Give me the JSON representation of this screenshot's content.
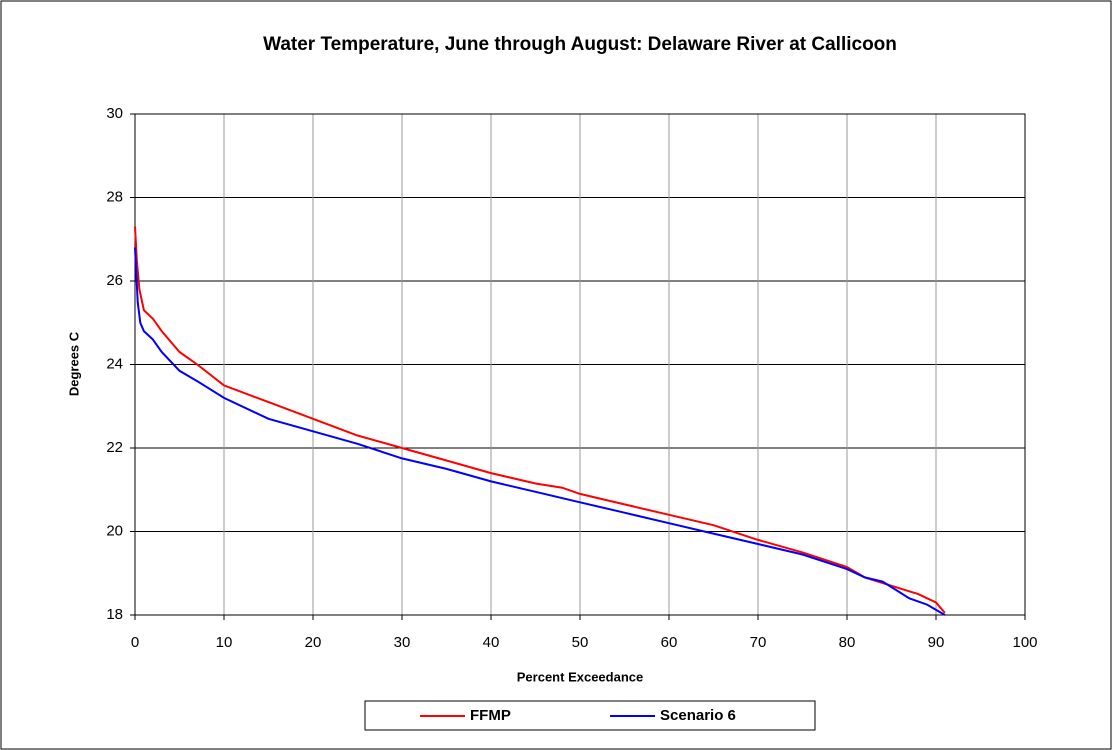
{
  "chart_data": {
    "type": "line",
    "title": "Water Temperature, June through August: Delaware River at Callicoon",
    "xlabel": "Percent Exceedance",
    "ylabel": "Degrees C",
    "xlim": [
      0,
      100
    ],
    "xticks": [
      0,
      10,
      20,
      30,
      40,
      50,
      60,
      70,
      80,
      90,
      100
    ],
    "ylim": [
      18,
      30
    ],
    "yticks": [
      18,
      20,
      22,
      24,
      26,
      28,
      30
    ],
    "grid": true,
    "legend": "bottom",
    "series": [
      {
        "name": "FFMP",
        "color": "#ff0000",
        "x": [
          0,
          0.2,
          0.5,
          1,
          2,
          3,
          5,
          7,
          10,
          15,
          20,
          25,
          30,
          35,
          40,
          45,
          48,
          50,
          55,
          60,
          65,
          70,
          75,
          80,
          82,
          85,
          88,
          90,
          91
        ],
        "values": [
          27.3,
          26.5,
          25.8,
          25.3,
          25.1,
          24.8,
          24.3,
          24.0,
          23.5,
          23.1,
          22.7,
          22.3,
          22.0,
          21.7,
          21.4,
          21.15,
          21.05,
          20.9,
          20.65,
          20.4,
          20.15,
          19.8,
          19.5,
          19.15,
          18.9,
          18.7,
          18.5,
          18.3,
          18.05
        ]
      },
      {
        "name": "Scenario 6",
        "color": "#0000ff",
        "x": [
          0,
          0.3,
          0.6,
          1,
          2,
          3,
          5,
          7,
          10,
          15,
          20,
          25,
          30,
          35,
          40,
          45,
          50,
          55,
          60,
          65,
          70,
          75,
          80,
          82,
          84,
          87,
          89,
          91
        ],
        "values": [
          26.8,
          25.5,
          25.0,
          24.8,
          24.6,
          24.3,
          23.85,
          23.6,
          23.2,
          22.7,
          22.4,
          22.1,
          21.75,
          21.5,
          21.2,
          20.95,
          20.7,
          20.45,
          20.2,
          19.95,
          19.7,
          19.45,
          19.1,
          18.9,
          18.8,
          18.4,
          18.25,
          18.0
        ]
      }
    ]
  }
}
